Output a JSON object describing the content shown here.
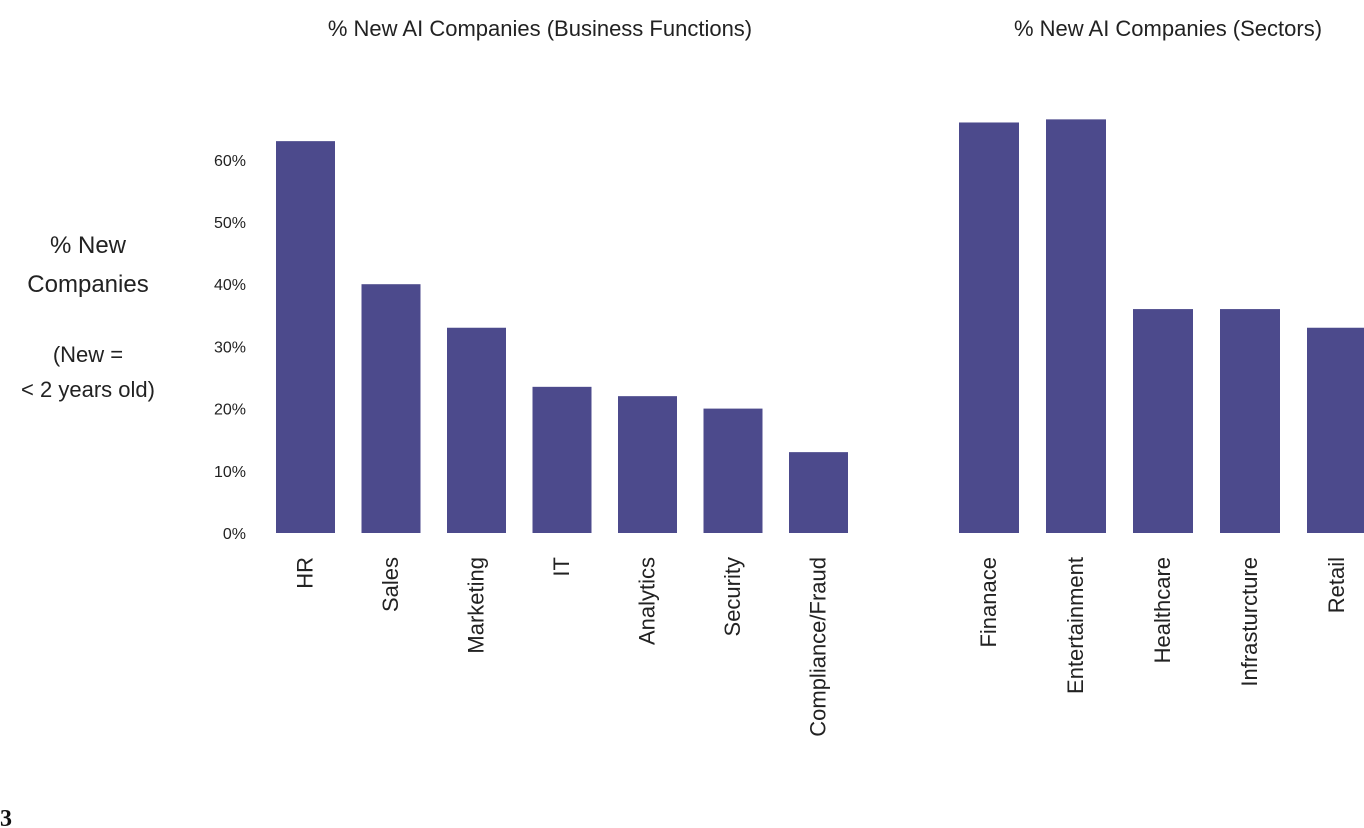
{
  "ylabel_lines": [
    "% New",
    "Companies",
    "(New =",
    "< 2 years old)"
  ],
  "corner_label": "3",
  "colors": {
    "bar": "#4c4a8c",
    "text": "#222222"
  },
  "chart_data": [
    {
      "type": "bar",
      "title": "% New AI Companies (Business Functions)",
      "categories": [
        "HR",
        "Sales",
        "Marketing",
        "IT",
        "Analytics",
        "Security",
        "Compliance/Fraud"
      ],
      "values": [
        63,
        40,
        33,
        23.5,
        22,
        20,
        13
      ],
      "ylim": [
        0,
        65
      ],
      "yticks": [
        "0%",
        "10%",
        "20%",
        "30%",
        "40%",
        "50%",
        "60%"
      ],
      "grid": false
    },
    {
      "type": "bar",
      "title": "% New AI Companies (Sectors)",
      "categories": [
        "Finanace",
        "Entertainment",
        "Healthcare",
        "Infrasturcture",
        "Retail"
      ],
      "values": [
        66,
        66.5,
        36,
        36,
        33
      ],
      "ylim": [
        0,
        65
      ],
      "grid": false
    }
  ]
}
